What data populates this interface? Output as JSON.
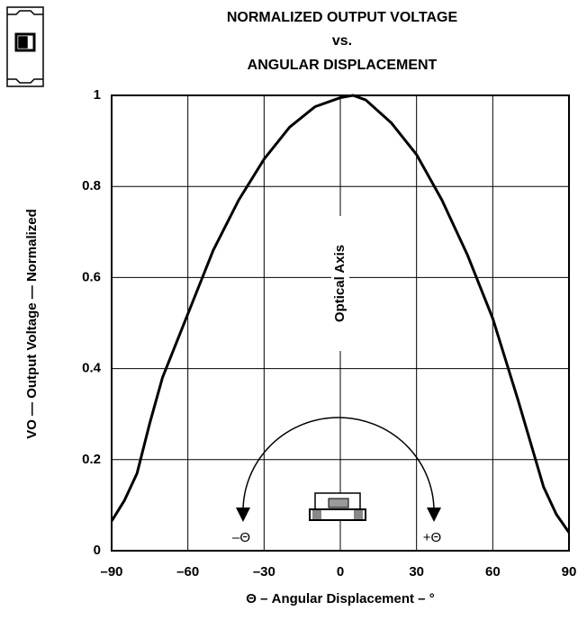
{
  "chart_data": {
    "type": "line",
    "title": [
      "NORMALIZED OUTPUT VOLTAGE",
      "vs.",
      "ANGULAR DISPLACEMENT"
    ],
    "xlabel": "Θ – Angular Displacement – °",
    "ylabel": "VO — Output Voltage — Normalized",
    "annotations": [
      "Optical Axis",
      "–Θ",
      "+Θ"
    ],
    "x": [
      -90,
      -85,
      -80,
      -75,
      -70,
      -60,
      -50,
      -40,
      -30,
      -20,
      -10,
      0,
      5,
      10,
      20,
      30,
      40,
      50,
      60,
      70,
      80,
      85,
      90
    ],
    "values": [
      0.065,
      0.11,
      0.17,
      0.28,
      0.38,
      0.52,
      0.66,
      0.77,
      0.86,
      0.93,
      0.975,
      0.995,
      1.0,
      0.99,
      0.94,
      0.87,
      0.77,
      0.65,
      0.51,
      0.33,
      0.14,
      0.08,
      0.04
    ],
    "color": "#000000",
    "xlim": [
      -90,
      90
    ],
    "ylim": [
      0,
      1
    ],
    "xticks": [
      {
        "value": -90,
        "label": "–90"
      },
      {
        "value": -60,
        "label": "–60"
      },
      {
        "value": -30,
        "label": "–30"
      },
      0,
      30,
      60,
      90
    ],
    "yticks": [
      0,
      0.2,
      0.4,
      0.6,
      0.8,
      1
    ],
    "grid": true
  }
}
